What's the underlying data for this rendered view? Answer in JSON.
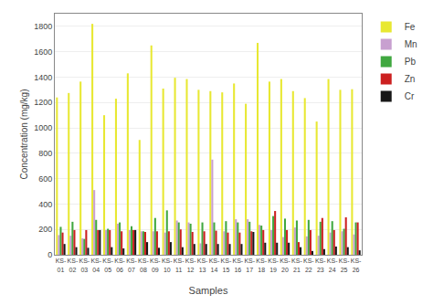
{
  "chart_data": {
    "type": "bar",
    "categories": [
      "KS-\n01",
      "KS-\n02",
      "KS-\n03",
      "KS-\n04",
      "KS-\n05",
      "KS-\n06",
      "KS-\n07",
      "KS-\n08",
      "KS-\n09",
      "KS-\n10",
      "KS-\n11",
      "KS-\n12",
      "KS-\n13",
      "KS-\n14",
      "KS-\n15",
      "KS-\n16",
      "KS-\n17",
      "KS-\n18",
      "KS-\n19",
      "KS-\n20",
      "KS-\n21",
      "KS-\n22",
      "KS-\n23",
      "KS-\n24",
      "KS-\n25",
      "KS-\n26"
    ],
    "series": [
      {
        "name": "Fe",
        "color": "#e8e832",
        "values": [
          1240,
          1275,
          1365,
          1820,
          1100,
          1230,
          1430,
          905,
          1650,
          1310,
          1395,
          1385,
          1300,
          1290,
          1280,
          1350,
          1190,
          1670,
          1365,
          1385,
          1290,
          1235,
          1050,
          1385,
          1300,
          1305
        ]
      },
      {
        "name": "Mn",
        "color": "#c8a0d0",
        "values": [
          155,
          150,
          130,
          510,
          195,
          245,
          195,
          185,
          185,
          175,
          270,
          255,
          90,
          750,
          185,
          280,
          280,
          235,
          195,
          140,
          215,
          145,
          150,
          175,
          185,
          160
        ]
      },
      {
        "name": "Pb",
        "color": "#40a840",
        "values": [
          220,
          260,
          125,
          275,
          205,
          255,
          225,
          185,
          290,
          350,
          255,
          245,
          255,
          255,
          265,
          255,
          260,
          230,
          305,
          285,
          270,
          275,
          260,
          265,
          205,
          255
        ]
      },
      {
        "name": "Zn",
        "color": "#cc2020",
        "values": [
          175,
          195,
          195,
          195,
          195,
          185,
          195,
          180,
          185,
          185,
          200,
          180,
          185,
          190,
          175,
          175,
          185,
          195,
          345,
          195,
          100,
          195,
          290,
          195,
          295,
          255
        ]
      },
      {
        "name": "Cr",
        "color": "#181818",
        "values": [
          85,
          60,
          55,
          195,
          60,
          50,
          195,
          100,
          55,
          100,
          60,
          85,
          85,
          85,
          85,
          85,
          180,
          95,
          95,
          95,
          60,
          30,
          45,
          65,
          60,
          35
        ]
      }
    ],
    "xlabel": "Samples",
    "ylabel": "Concentration (mg/kg)",
    "ylim": [
      0,
      1900
    ],
    "yticks": [
      0,
      200,
      400,
      600,
      800,
      1000,
      1200,
      1400,
      1600,
      1800
    ],
    "grid": true,
    "legend": "upper right"
  }
}
